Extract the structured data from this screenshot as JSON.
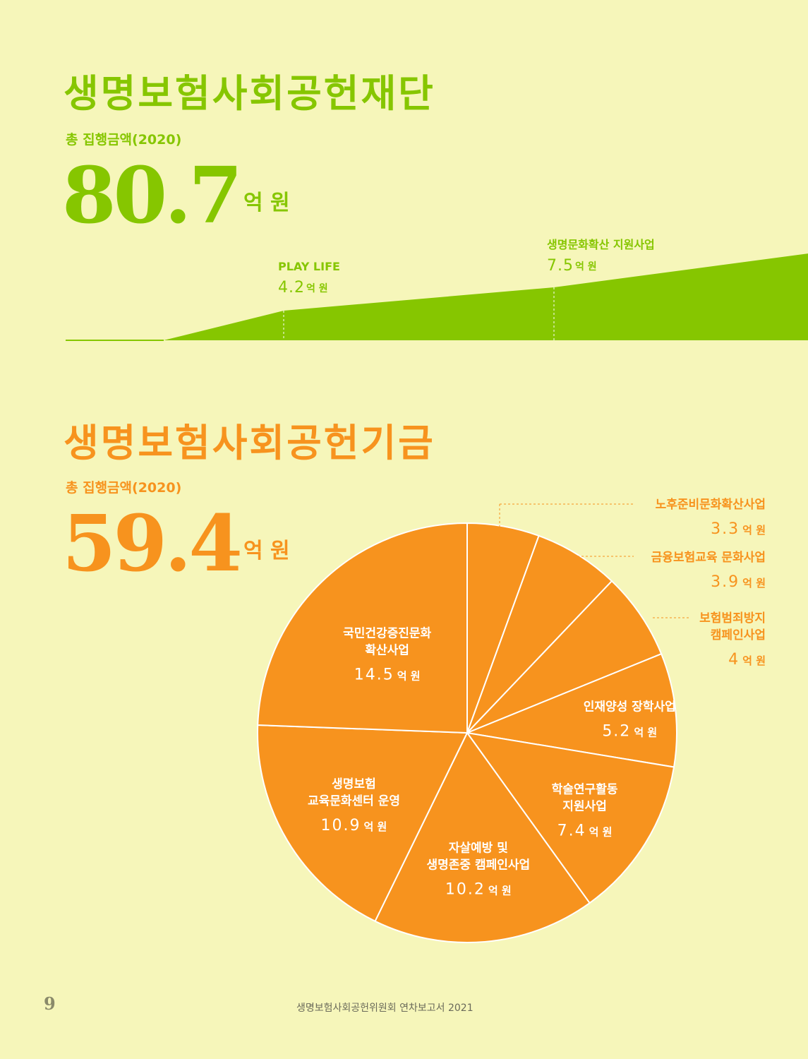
{
  "foundation": {
    "title": "생명보험사회공헌재단",
    "subtitle": "총 집행금액(2020)",
    "total": "80.7",
    "unit": "억 원"
  },
  "fund": {
    "title": "생명보험사회공헌기금",
    "subtitle": "총 집행금액(2020)",
    "total": "59.4",
    "unit": "억 원"
  },
  "footer": {
    "page_number": "9",
    "report_title": "생명보험사회공헌위원회 연차보고서 2021"
  },
  "colors": {
    "green": "#86C600",
    "orange": "#F7931E",
    "background": "#F6F6BA",
    "white": "#FFFFFF"
  },
  "chart_data": [
    {
      "type": "area",
      "title": "",
      "series": [
        {
          "name": "PLAY LIFE",
          "value": 4.2,
          "value_label": "4.2",
          "unit": "억 원"
        },
        {
          "name": "생명문화확산 지원사업",
          "value": 7.5,
          "value_label": "7.5",
          "unit": "억 원"
        }
      ]
    },
    {
      "type": "pie",
      "title": "",
      "unit": "억 원",
      "slices": [
        {
          "label_lines": [
            "노후준비문화확산사업"
          ],
          "value": 3.3,
          "value_label": "3.3",
          "label_position": "outside"
        },
        {
          "label_lines": [
            "금융보험교육 문화사업"
          ],
          "value": 3.9,
          "value_label": "3.9",
          "label_position": "outside"
        },
        {
          "label_lines": [
            "보험범죄방지",
            "캠페인사업"
          ],
          "value": 4,
          "value_label": "4",
          "label_position": "outside"
        },
        {
          "label_lines": [
            "인재양성 장학사업"
          ],
          "value": 5.2,
          "value_label": "5.2",
          "label_position": "inside"
        },
        {
          "label_lines": [
            "학술연구활동",
            "지원사업"
          ],
          "value": 7.4,
          "value_label": "7.4",
          "label_position": "inside"
        },
        {
          "label_lines": [
            "자살예방 및",
            "생명존중 캠페인사업"
          ],
          "value": 10.2,
          "value_label": "10.2",
          "label_position": "inside"
        },
        {
          "label_lines": [
            "생명보험",
            "교육문화센터 운영"
          ],
          "value": 10.9,
          "value_label": "10.9",
          "label_position": "inside"
        },
        {
          "label_lines": [
            "국민건강증진문화",
            "확산사업"
          ],
          "value": 14.5,
          "value_label": "14.5",
          "label_position": "inside"
        }
      ]
    }
  ]
}
